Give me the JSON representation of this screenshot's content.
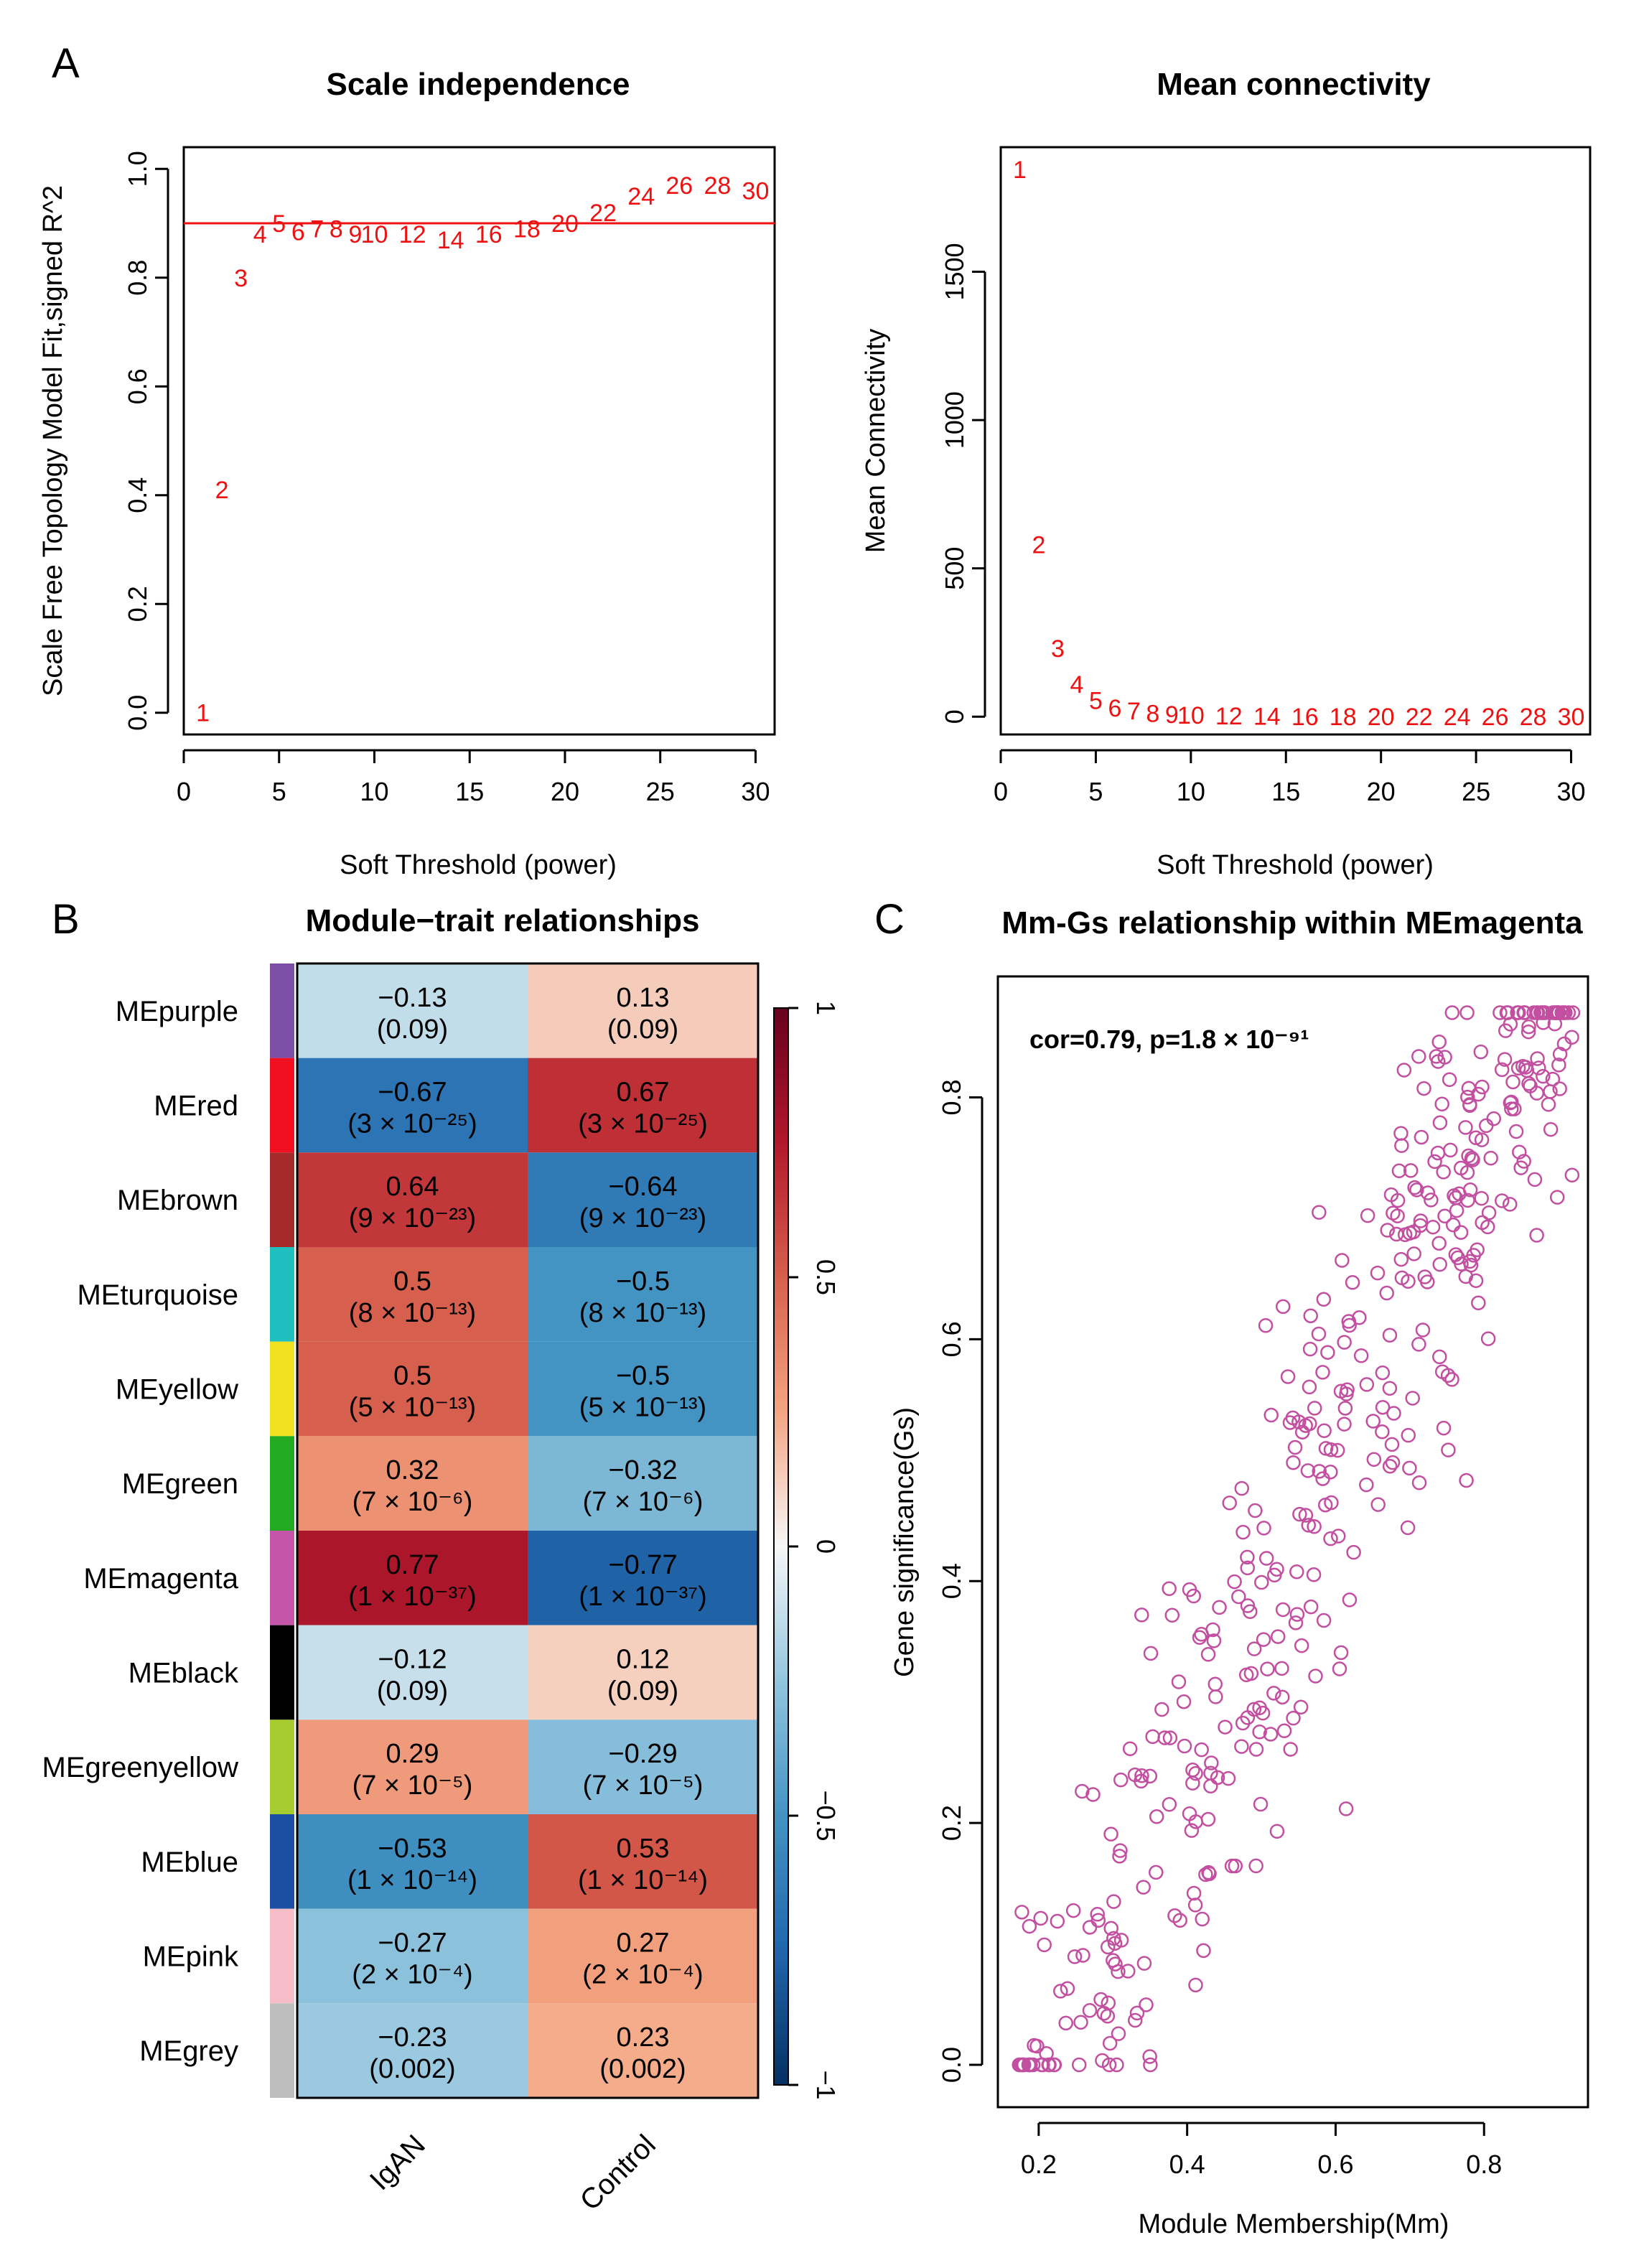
{
  "panel_letters": {
    "a": "A",
    "b": "B",
    "c": "C"
  },
  "colors": {
    "red_text": "#ee1111",
    "scatter": "#c24fa0"
  },
  "chart_data": [
    {
      "type": "scatter",
      "id": "scale_independence",
      "title": "Scale independence",
      "xlabel": "Soft Threshold (power)",
      "ylabel": "Scale Free Topology Model Fit,signed R^2",
      "xlim": [
        0,
        31
      ],
      "ylim": [
        -0.04,
        1.04
      ],
      "xticks": [
        0,
        5,
        10,
        15,
        20,
        25,
        30
      ],
      "yticks": [
        0.0,
        0.2,
        0.4,
        0.6,
        0.8,
        1.0
      ],
      "ytick_labels": [
        "0.0",
        "0.2",
        "0.4",
        "0.6",
        "0.8",
        "1.0"
      ],
      "hline": 0.9,
      "powers": [
        "1",
        "2",
        "3",
        "4",
        "5",
        "6",
        "7",
        "8",
        "9",
        "10",
        "12",
        "14",
        "16",
        "18",
        "20",
        "22",
        "24",
        "26",
        "28",
        "30"
      ],
      "x": [
        1,
        2,
        3,
        4,
        5,
        6,
        7,
        8,
        9,
        10,
        12,
        14,
        16,
        18,
        20,
        22,
        24,
        26,
        28,
        30
      ],
      "y": [
        0.0,
        0.41,
        0.8,
        0.88,
        0.9,
        0.885,
        0.89,
        0.89,
        0.88,
        0.88,
        0.88,
        0.87,
        0.88,
        0.89,
        0.9,
        0.92,
        0.95,
        0.97,
        0.97,
        0.96
      ]
    },
    {
      "type": "scatter",
      "id": "mean_connectivity",
      "title": "Mean connectivity",
      "xlabel": "Soft Threshold (power)",
      "ylabel": "Mean Connectivity",
      "xlim": [
        0,
        31
      ],
      "ylim": [
        -60,
        1920
      ],
      "xticks": [
        0,
        5,
        10,
        15,
        20,
        25,
        30
      ],
      "yticks": [
        0,
        500,
        1000,
        1500
      ],
      "ytick_labels": [
        "0",
        "500",
        "1000",
        "1500"
      ],
      "powers": [
        "1",
        "2",
        "3",
        "4",
        "5",
        "6",
        "7",
        "8",
        "9",
        "10",
        "12",
        "14",
        "16",
        "18",
        "20",
        "22",
        "24",
        "26",
        "28",
        "30"
      ],
      "x": [
        1,
        2,
        3,
        4,
        5,
        6,
        7,
        8,
        9,
        10,
        12,
        14,
        16,
        18,
        20,
        22,
        24,
        26,
        28,
        30
      ],
      "y": [
        1845,
        580,
        230,
        110,
        55,
        30,
        20,
        12,
        8,
        5,
        3,
        2,
        1,
        1,
        1,
        1,
        1,
        1,
        1,
        1
      ]
    },
    {
      "type": "heatmap",
      "id": "module_trait",
      "title": "Module−trait relationships",
      "columns": [
        "IgAN",
        "Control"
      ],
      "rows": [
        {
          "name": "MEpurple",
          "color": "#7b4fa6",
          "cells": [
            {
              "r": -0.13,
              "label": "−0.13",
              "p": "(0.09)"
            },
            {
              "r": 0.13,
              "label": "0.13",
              "p": "(0.09)"
            }
          ]
        },
        {
          "name": "MEred",
          "color": "#f01020",
          "cells": [
            {
              "r": -0.67,
              "label": "−0.67",
              "p": "(3 × 10⁻²⁵)"
            },
            {
              "r": 0.67,
              "label": "0.67",
              "p": "(3 × 10⁻²⁵)"
            }
          ]
        },
        {
          "name": "MEbrown",
          "color": "#a52a2a",
          "cells": [
            {
              "r": 0.64,
              "label": "0.64",
              "p": "(9 × 10⁻²³)"
            },
            {
              "r": -0.64,
              "label": "−0.64",
              "p": "(9 × 10⁻²³)"
            }
          ]
        },
        {
          "name": "MEturquoise",
          "color": "#1fbfbf",
          "cells": [
            {
              "r": 0.5,
              "label": "0.5",
              "p": "(8 × 10⁻¹³)"
            },
            {
              "r": -0.5,
              "label": "−0.5",
              "p": "(8 × 10⁻¹³)"
            }
          ]
        },
        {
          "name": "MEyellow",
          "color": "#f0e020",
          "cells": [
            {
              "r": 0.5,
              "label": "0.5",
              "p": "(5 × 10⁻¹³)"
            },
            {
              "r": -0.5,
              "label": "−0.5",
              "p": "(5 × 10⁻¹³)"
            }
          ]
        },
        {
          "name": "MEgreen",
          "color": "#22aa22",
          "cells": [
            {
              "r": 0.32,
              "label": "0.32",
              "p": "(7 × 10⁻⁶)"
            },
            {
              "r": -0.32,
              "label": "−0.32",
              "p": "(7 × 10⁻⁶)"
            }
          ]
        },
        {
          "name": "MEmagenta",
          "color": "#c455a8",
          "cells": [
            {
              "r": 0.77,
              "label": "0.77",
              "p": "(1 × 10⁻³⁷)"
            },
            {
              "r": -0.77,
              "label": "−0.77",
              "p": "(1 × 10⁻³⁷)"
            }
          ]
        },
        {
          "name": "MEblack",
          "color": "#000000",
          "cells": [
            {
              "r": -0.12,
              "label": "−0.12",
              "p": "(0.09)"
            },
            {
              "r": 0.12,
              "label": "0.12",
              "p": "(0.09)"
            }
          ]
        },
        {
          "name": "MEgreenyellow",
          "color": "#a6cc30",
          "cells": [
            {
              "r": 0.29,
              "label": "0.29",
              "p": "(7 × 10⁻⁵)"
            },
            {
              "r": -0.29,
              "label": "−0.29",
              "p": "(7 × 10⁻⁵)"
            }
          ]
        },
        {
          "name": "MEblue",
          "color": "#1c4fa3",
          "cells": [
            {
              "r": -0.53,
              "label": "−0.53",
              "p": "(1 × 10⁻¹⁴)"
            },
            {
              "r": 0.53,
              "label": "0.53",
              "p": "(1 × 10⁻¹⁴)"
            }
          ]
        },
        {
          "name": "MEpink",
          "color": "#f6bcc8",
          "cells": [
            {
              "r": -0.27,
              "label": "−0.27",
              "p": "(2 × 10⁻⁴)"
            },
            {
              "r": 0.27,
              "label": "0.27",
              "p": "(2 × 10⁻⁴)"
            }
          ]
        },
        {
          "name": "MEgrey",
          "color": "#bebebe",
          "cells": [
            {
              "r": -0.23,
              "label": "−0.23",
              "p": "(0.002)"
            },
            {
              "r": 0.23,
              "label": "0.23",
              "p": "(0.002)"
            }
          ]
        }
      ],
      "colorbar": {
        "min": -1,
        "max": 1,
        "ticks": [
          -1,
          -0.5,
          0,
          0.5,
          1
        ],
        "tick_labels": [
          "−1",
          "−0.5",
          "0",
          "0.5",
          "1"
        ]
      }
    },
    {
      "type": "scatter",
      "id": "mm_gs",
      "title": "Mm-Gs relationship within MEmagenta",
      "xlabel": "Module Membership(Mm)",
      "ylabel": "Gene significance(Gs)",
      "annotation": "cor=0.79, p=1.8 × 10⁻⁹¹",
      "correlation": 0.79,
      "n_points": 420,
      "xlim": [
        0.145,
        0.94
      ],
      "ylim": [
        -0.035,
        0.9
      ],
      "xticks": [
        0.2,
        0.4,
        0.6,
        0.8
      ],
      "xtick_labels": [
        "0.2",
        "0.4",
        "0.6",
        "0.8"
      ],
      "yticks": [
        0.0,
        0.2,
        0.4,
        0.6,
        0.8
      ],
      "ytick_labels": [
        "0.0",
        "0.2",
        "0.4",
        "0.6",
        "0.8"
      ],
      "x_range": [
        0.17,
        0.92
      ],
      "y_range": [
        0.0,
        0.87
      ]
    }
  ]
}
